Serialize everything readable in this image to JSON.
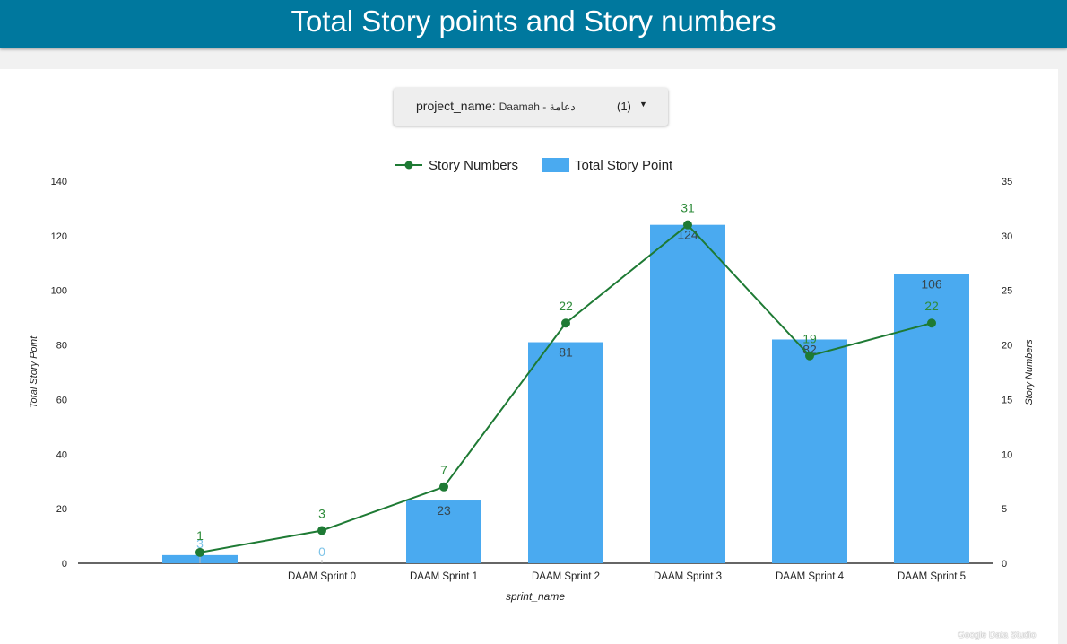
{
  "header": {
    "title": "Total Story points and Story numbers"
  },
  "filter": {
    "field": "project_name",
    "value": "Daamah - دعامة",
    "count": "(1)"
  },
  "watermark": "Google Data Studio",
  "colors": {
    "header_bg": "#00789e",
    "bar": "#4aaaf0",
    "line": "#1e7a34",
    "line_label": "#2e8b3a",
    "bar_label": "#37474f",
    "bar_label_light": "#7cc3e8"
  },
  "icons": {
    "filter_caret": "caret-down-icon"
  },
  "chart_data": {
    "type": "bar",
    "categories": [
      "",
      "DAAM Sprint 0",
      "DAAM Sprint 1",
      "DAAM Sprint 2",
      "DAAM Sprint 3",
      "DAAM Sprint 4",
      "DAAM Sprint 5"
    ],
    "series": [
      {
        "name": "Total Story Point",
        "type": "bar",
        "axis": "left",
        "values": [
          3,
          0,
          23,
          81,
          124,
          82,
          106
        ]
      },
      {
        "name": "Story Numbers",
        "type": "line",
        "axis": "right",
        "values": [
          1,
          3,
          7,
          22,
          31,
          19,
          22
        ]
      }
    ],
    "xlabel": "sprint_name",
    "ylabel": "Total Story Point",
    "y2label": "Story Numbers",
    "ylim": [
      0,
      140
    ],
    "y2lim": [
      0,
      35
    ],
    "yticks": [
      0,
      20,
      40,
      60,
      80,
      100,
      120,
      140
    ],
    "y2ticks": [
      0,
      5,
      10,
      15,
      20,
      25,
      30,
      35
    ],
    "legend": [
      "Story Numbers",
      "Total Story Point"
    ],
    "legend_position": "top-center",
    "grid": false
  }
}
